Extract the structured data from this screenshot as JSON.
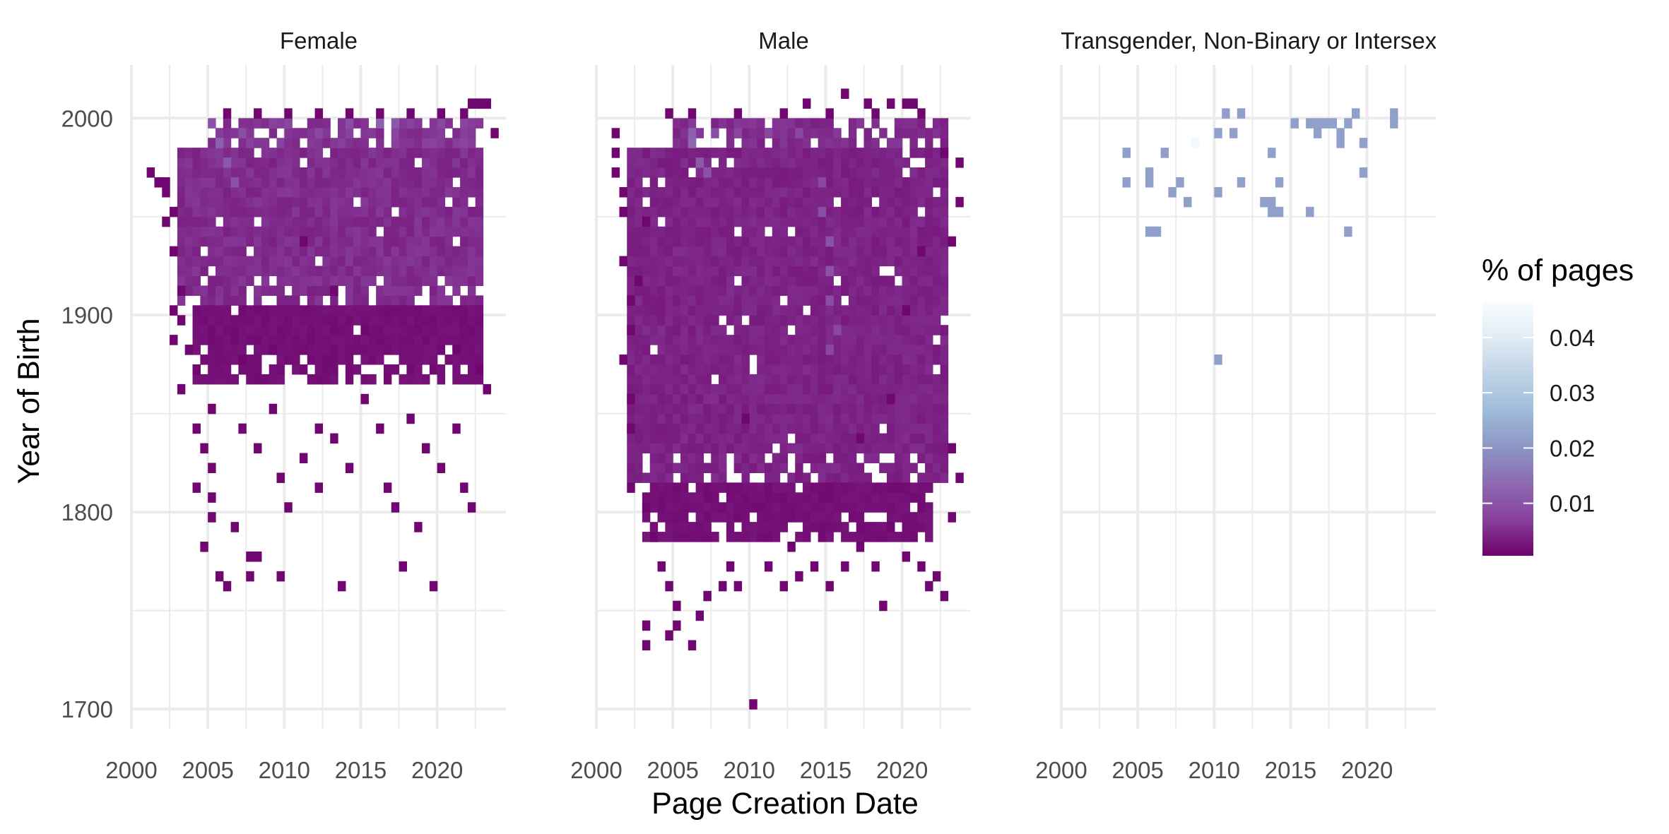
{
  "chart_data": {
    "type": "heatmap",
    "x_axis_title": "Page Creation Date",
    "y_axis_title": "Year of Birth",
    "x_ticks": [
      "2000",
      "2005",
      "2010",
      "2015",
      "2020"
    ],
    "x_tick_values": [
      2000,
      2005,
      2010,
      2015,
      2020
    ],
    "y_ticks": [
      "1700",
      "1800",
      "1900",
      "2000"
    ],
    "y_tick_values": [
      1700,
      1800,
      1900,
      2000
    ],
    "xlim": [
      2000,
      2024.5
    ],
    "ylim": [
      1690,
      2027
    ],
    "grid": true,
    "legend": {
      "title": "% of pages",
      "placement": "right",
      "labels": [
        "0.04",
        "0.03",
        "0.02",
        "0.01"
      ],
      "values": [
        0.04,
        0.03,
        0.02,
        0.01
      ],
      "range": [
        0.0005,
        0.0465
      ],
      "colors": [
        "#6e016b",
        "#88419d",
        "#8c6bb1",
        "#8c96c6",
        "#9ebcda",
        "#bfd3e6",
        "#e0ecf4",
        "#f7fcfd"
      ]
    },
    "bin_width_x": 0.5,
    "bin_height_y": 5,
    "facets": [
      {
        "title": "Female",
        "dense_regions": [
          {
            "x": [
              2003,
              2023
            ],
            "y": [
              1905,
              1985
            ],
            "value": 0.005
          },
          {
            "x": [
              2005,
              2023
            ],
            "y": [
              1985,
              2000
            ],
            "value": 0.006
          },
          {
            "x": [
              2004,
              2023
            ],
            "y": [
              1865,
              1905
            ],
            "value": 0.002
          }
        ],
        "hot_cells": [
          [
            2005,
            1995,
            0.01
          ],
          [
            2005.5,
            1985,
            0.012
          ],
          [
            2006,
            1975,
            0.011
          ],
          [
            2006.5,
            1965,
            0.01
          ],
          [
            2007,
            1990,
            0.009
          ],
          [
            2010,
            1995,
            0.008
          ],
          [
            2014,
            1995,
            0.009
          ],
          [
            2016,
            1995,
            0.012
          ],
          [
            2017,
            1995,
            0.011
          ],
          [
            2020,
            1995,
            0.008
          ],
          [
            2012,
            1990,
            0.008
          ]
        ],
        "sparse_points": [
          [
            2001,
            1970
          ],
          [
            2001.5,
            1965
          ],
          [
            2002,
            1965
          ],
          [
            2002,
            1960
          ],
          [
            2002.5,
            1950
          ],
          [
            2002,
            1945
          ],
          [
            2002.5,
            1930
          ],
          [
            2003,
            1910
          ],
          [
            2002.5,
            1900
          ],
          [
            2003,
            1895
          ],
          [
            2002.5,
            1885
          ],
          [
            2003.5,
            1880
          ],
          [
            2003,
            1860
          ],
          [
            2004,
            1870
          ],
          [
            2004,
            1840
          ],
          [
            2004.5,
            1830
          ],
          [
            2005,
            1850
          ],
          [
            2005,
            1820
          ],
          [
            2004,
            1810
          ],
          [
            2005,
            1805
          ],
          [
            2005,
            1795
          ],
          [
            2004.5,
            1780
          ],
          [
            2005.5,
            1765
          ],
          [
            2006,
            1760
          ],
          [
            2006.5,
            1790
          ],
          [
            2007.5,
            1775
          ],
          [
            2008,
            1775
          ],
          [
            2007.5,
            1765
          ],
          [
            2009.5,
            1765
          ],
          [
            2007,
            1840
          ],
          [
            2008,
            1830
          ],
          [
            2009,
            1850
          ],
          [
            2009.5,
            1815
          ],
          [
            2010,
            1800
          ],
          [
            2011,
            1825
          ],
          [
            2012,
            1840
          ],
          [
            2012,
            1810
          ],
          [
            2013,
            1835
          ],
          [
            2013.5,
            1760
          ],
          [
            2014,
            1820
          ],
          [
            2015,
            1855
          ],
          [
            2016,
            1840
          ],
          [
            2016.5,
            1810
          ],
          [
            2017,
            1800
          ],
          [
            2017.5,
            1770
          ],
          [
            2018,
            1845
          ],
          [
            2018.5,
            1790
          ],
          [
            2019,
            1830
          ],
          [
            2019.5,
            1760
          ],
          [
            2020,
            1820
          ],
          [
            2021,
            1840
          ],
          [
            2021.5,
            1810
          ],
          [
            2022,
            1800
          ],
          [
            2022.5,
            1870
          ],
          [
            2023,
            1860
          ],
          [
            2023.5,
            1990
          ],
          [
            2022,
            2005
          ],
          [
            2022.5,
            2005
          ],
          [
            2023,
            2005
          ],
          [
            2011,
            1935
          ],
          [
            2013,
            1910
          ],
          [
            2015,
            1890
          ],
          [
            2009,
            1880
          ],
          [
            2007,
            1875
          ],
          [
            2021,
            1880
          ],
          [
            2006,
            2000
          ],
          [
            2008,
            2000
          ],
          [
            2010,
            2000
          ],
          [
            2012,
            2000
          ],
          [
            2014,
            2000
          ],
          [
            2016,
            2000
          ],
          [
            2018,
            2000
          ],
          [
            2020,
            2000
          ],
          [
            2021.5,
            2000
          ]
        ]
      },
      {
        "title": "Male",
        "dense_regions": [
          {
            "x": [
              2002,
              2023
            ],
            "y": [
              1815,
              1985
            ],
            "value": 0.004
          },
          {
            "x": [
              2005,
              2023
            ],
            "y": [
              1985,
              2000
            ],
            "value": 0.005
          },
          {
            "x": [
              2003,
              2022
            ],
            "y": [
              1785,
              1815
            ],
            "value": 0.002
          }
        ],
        "hot_cells": [
          [
            2006,
            1990,
            0.012
          ],
          [
            2006,
            1985,
            0.013
          ],
          [
            2006.5,
            1975,
            0.011
          ],
          [
            2007,
            1970,
            0.01
          ],
          [
            2007.5,
            1990,
            0.009
          ],
          [
            2009,
            1990,
            0.008
          ],
          [
            2011,
            1990,
            0.008
          ],
          [
            2013,
            1990,
            0.008
          ],
          [
            2014.5,
            1950,
            0.009
          ],
          [
            2015,
            1935,
            0.01
          ],
          [
            2015,
            1920,
            0.01
          ],
          [
            2015,
            1905,
            0.009
          ],
          [
            2015.5,
            1890,
            0.008
          ],
          [
            2015,
            1880,
            0.008
          ],
          [
            2014.5,
            1965,
            0.008
          ]
        ],
        "sparse_points": [
          [
            2001,
            1990
          ],
          [
            2001,
            1980
          ],
          [
            2001,
            1970
          ],
          [
            2001.5,
            1960
          ],
          [
            2001.5,
            1950
          ],
          [
            2001.5,
            1925
          ],
          [
            2002,
            1905
          ],
          [
            2002,
            1890
          ],
          [
            2001.5,
            1875
          ],
          [
            2002,
            1855
          ],
          [
            2002,
            1840
          ],
          [
            2002,
            1810
          ],
          [
            2003,
            1800
          ],
          [
            2003.5,
            1785
          ],
          [
            2004,
            1770
          ],
          [
            2004.5,
            1760
          ],
          [
            2005,
            1750
          ],
          [
            2005,
            1740
          ],
          [
            2003,
            1740
          ],
          [
            2003,
            1730
          ],
          [
            2004.5,
            1735
          ],
          [
            2006,
            1730
          ],
          [
            2006.5,
            1745
          ],
          [
            2007,
            1755
          ],
          [
            2008,
            1760
          ],
          [
            2008.5,
            1770
          ],
          [
            2009,
            1760
          ],
          [
            2010,
            1700
          ],
          [
            2011,
            1770
          ],
          [
            2012,
            1760
          ],
          [
            2012.5,
            1780
          ],
          [
            2013,
            1765
          ],
          [
            2014,
            1770
          ],
          [
            2015,
            1760
          ],
          [
            2016,
            1770
          ],
          [
            2017,
            1780
          ],
          [
            2018,
            1770
          ],
          [
            2018.5,
            1750
          ],
          [
            2019,
            1790
          ],
          [
            2020,
            1775
          ],
          [
            2021,
            1770
          ],
          [
            2021.5,
            1760
          ],
          [
            2022,
            1765
          ],
          [
            2022.5,
            1755
          ],
          [
            2023,
            1830
          ],
          [
            2023.5,
            1815
          ],
          [
            2023,
            1795
          ],
          [
            2016,
            2010
          ],
          [
            2013.5,
            2005
          ],
          [
            2017.5,
            2005
          ],
          [
            2019,
            2005
          ],
          [
            2020,
            2005
          ],
          [
            2020.5,
            2005
          ],
          [
            2023.5,
            1955
          ],
          [
            2023,
            1935
          ],
          [
            2020,
            1900
          ],
          [
            2019,
            1855
          ],
          [
            2017,
            1835
          ],
          [
            2009.5,
            1845
          ],
          [
            2021,
            1930
          ],
          [
            2022.5,
            1980
          ],
          [
            2023.5,
            1975
          ],
          [
            2003,
            1945
          ],
          [
            2002.5,
            1915
          ],
          [
            2004.5,
            2000
          ],
          [
            2006,
            2000
          ],
          [
            2009,
            2000
          ],
          [
            2012,
            2000
          ],
          [
            2015,
            2000
          ],
          [
            2018,
            2000
          ],
          [
            2021,
            2000
          ]
        ]
      },
      {
        "title": "Transgender, Non-Binary or Intersex",
        "dense_regions": [],
        "hot_cells": [
          [
            2008.5,
            1985,
            0.045
          ]
        ],
        "sparse_points": [
          [
            2004,
            1980
          ],
          [
            2004,
            1965
          ],
          [
            2005.5,
            1970
          ],
          [
            2005.5,
            1965
          ],
          [
            2005.5,
            1940
          ],
          [
            2006,
            1940
          ],
          [
            2006.5,
            1980
          ],
          [
            2007,
            1960
          ],
          [
            2007.5,
            1965
          ],
          [
            2008,
            1955
          ],
          [
            2010,
            1990
          ],
          [
            2010,
            1960
          ],
          [
            2010,
            1875
          ],
          [
            2010.5,
            2000
          ],
          [
            2011,
            1990
          ],
          [
            2011.5,
            2000
          ],
          [
            2011.5,
            1965
          ],
          [
            2013,
            1955
          ],
          [
            2013.5,
            1955
          ],
          [
            2013.5,
            1950
          ],
          [
            2013.5,
            1980
          ],
          [
            2014,
            1965
          ],
          [
            2014,
            1950
          ],
          [
            2015,
            1995
          ],
          [
            2016,
            1995
          ],
          [
            2016,
            1950
          ],
          [
            2016.5,
            1995
          ],
          [
            2016.5,
            1990
          ],
          [
            2017,
            1995
          ],
          [
            2017.5,
            1995
          ],
          [
            2018,
            1990
          ],
          [
            2018,
            1985
          ],
          [
            2018.5,
            1995
          ],
          [
            2018.5,
            1940
          ],
          [
            2019,
            2000
          ],
          [
            2019.5,
            1985
          ],
          [
            2019.5,
            1970
          ],
          [
            2021.5,
            2000
          ],
          [
            2021.5,
            1995
          ]
        ],
        "sparse_value": 0.022
      }
    ]
  }
}
